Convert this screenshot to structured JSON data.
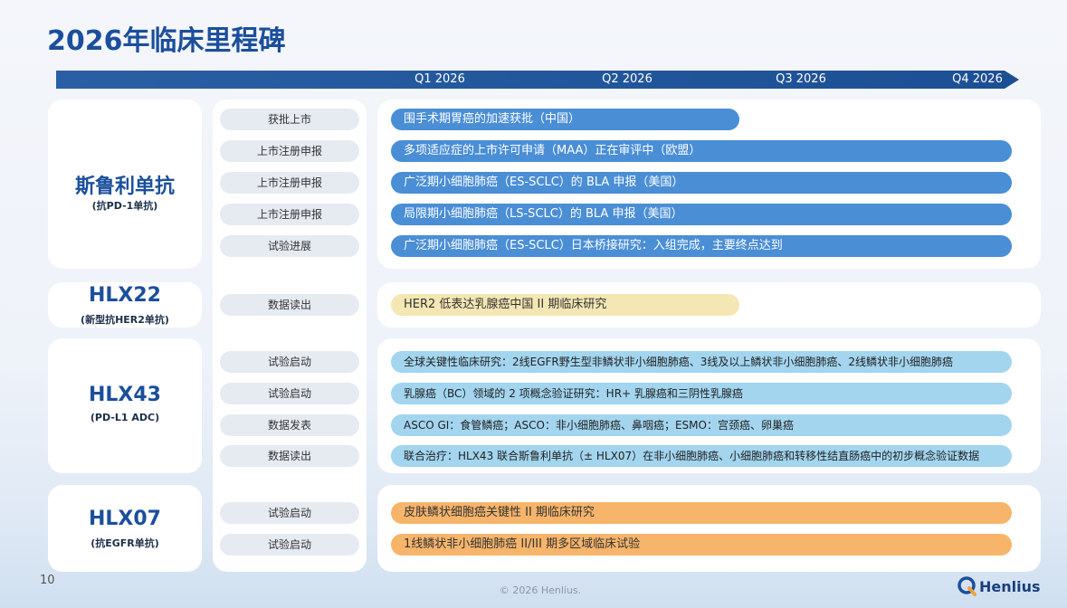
{
  "header": {
    "title": "2026年临床里程碑"
  },
  "timeline": {
    "quarters": [
      "Q1 2026",
      "Q2 2026",
      "Q3 2026",
      "Q4 2026"
    ]
  },
  "groups": [
    {
      "name": "斯鲁利单抗",
      "subtitle": "(抗PD-1单抗)",
      "rows": [
        {
          "status": "获批上市",
          "text": "围手术期胃癌的加速获批（中国）"
        },
        {
          "status": "上市注册申报",
          "text": "多项适应症的上市许可申请（MAA）正在审评中（欧盟）"
        },
        {
          "status": "上市注册申报",
          "text": "广泛期小细胞肺癌（ES-SCLC）的 BLA 申报（美国）"
        },
        {
          "status": "上市注册申报",
          "text": "局限期小细胞肺癌（LS-SCLC）的 BLA 申报（美国）"
        },
        {
          "status": "试验进展",
          "text": "广泛期小细胞肺癌（ES-SCLC）日本桥接研究：入组完成，主要终点达到"
        }
      ]
    },
    {
      "name": "HLX22",
      "subtitle": "(新型抗HER2单抗)",
      "rows": [
        {
          "status": "数据读出",
          "text": "HER2 低表达乳腺癌中国 II 期临床研究"
        }
      ]
    },
    {
      "name": "HLX43",
      "subtitle": "(PD-L1 ADC)",
      "rows": [
        {
          "status": "试验启动",
          "text": "全球关键性临床研究：2线EGFR野生型非鳞状非小细胞肺癌、3线及以上鳞状非小细胞肺癌、2线鳞状非小细胞肺癌"
        },
        {
          "status": "试验启动",
          "text": "乳腺癌（BC）领域的 2 项概念验证研究：HR+ 乳腺癌和三阴性乳腺癌"
        },
        {
          "status": "数据发表",
          "text": "ASCO GI：食管鳞癌；ASCO：非小细胞肺癌、鼻咽癌；ESMO：宫颈癌、卵巢癌"
        },
        {
          "status": "数据读出",
          "text": "联合治疗：HLX43 联合斯鲁利单抗（± HLX07）在非小细胞肺癌、小细胞肺癌和转移性结直肠癌中的初步概念验证数据"
        }
      ]
    },
    {
      "name": "HLX07",
      "subtitle": "(抗EGFR单抗)",
      "rows": [
        {
          "status": "试验启动",
          "text": "皮肤鳞状细胞癌关键性 II 期临床研究"
        },
        {
          "status": "试验启动",
          "text": "1线鳞状非小细胞肺癌 II/III 期多区域临床试验"
        }
      ]
    }
  ],
  "footer": {
    "page": "10",
    "copyright": "© 2026 Henlius.",
    "brand": "Henlius"
  }
}
